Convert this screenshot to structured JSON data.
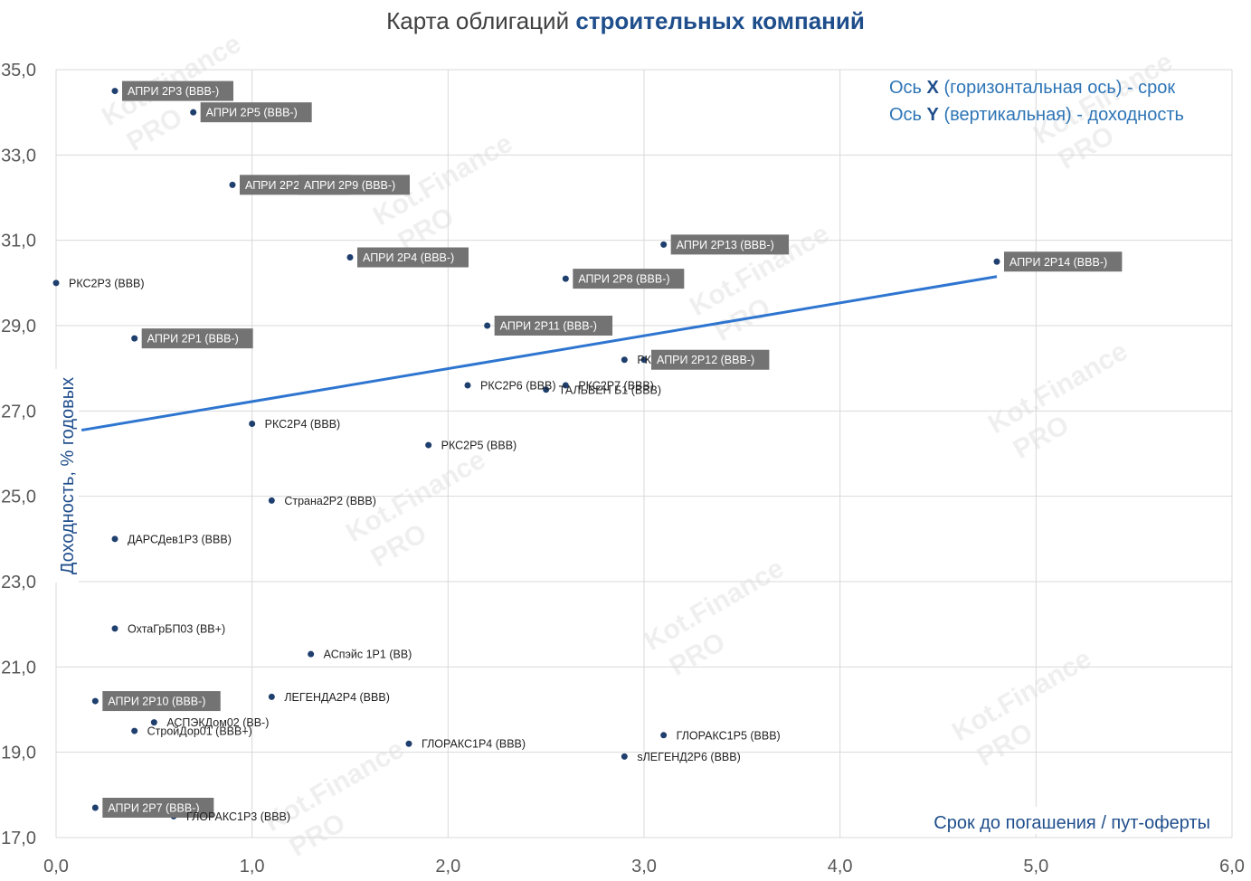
{
  "title_part1": "Карта облигаций ",
  "title_part2": "строительных компаний",
  "note_x_prefix": "Ось ",
  "note_x_letter": "X",
  "note_x_rest": " (горизонтальная ось) - срок",
  "note_y_prefix": "Ось ",
  "note_y_letter": "Y",
  "note_y_rest": " (вертикальная) - доходность",
  "watermark": "Kot.Finance",
  "watermark_badge": "PRO",
  "colors": {
    "points": "#1f3f6e",
    "trend": "#2e75d0",
    "label_box": "#737373",
    "title_accent": "#1f4e8c"
  },
  "chart_data": {
    "type": "scatter",
    "title": "Карта облигаций строительных компаний",
    "xlabel": "Срок до погашения / пут-оферты",
    "ylabel": "Доходность, % годовых",
    "xlim": [
      0,
      6
    ],
    "ylim": [
      17,
      35
    ],
    "x_ticks": [
      "0,0",
      "1,0",
      "2,0",
      "3,0",
      "4,0",
      "5,0",
      "6,0"
    ],
    "y_ticks": [
      "17,0",
      "19,0",
      "21,0",
      "23,0",
      "25,0",
      "27,0",
      "29,0",
      "31,0",
      "33,0",
      "35,0"
    ],
    "grid": true,
    "trendline": {
      "x": [
        0.13,
        4.8
      ],
      "y": [
        26.55,
        30.15
      ]
    },
    "points": [
      {
        "label": "АПРИ 2Р3 (BBB-)",
        "x": 0.3,
        "y": 34.5,
        "boxed": true
      },
      {
        "label": "АПРИ 2Р5 (BBB-)",
        "x": 0.7,
        "y": 34.0,
        "boxed": true
      },
      {
        "label": "АПРИ 2Р2 (BBB-)",
        "x": 0.9,
        "y": 32.3,
        "boxed": true
      },
      {
        "label": "АПРИ 2Р9 (BBB-)",
        "x": 1.2,
        "y": 32.3,
        "boxed": true
      },
      {
        "label": "АПРИ 2Р4 (BBB-)",
        "x": 1.5,
        "y": 30.6,
        "boxed": true
      },
      {
        "label": "АПРИ 2Р13 (BBB-)",
        "x": 3.1,
        "y": 30.9,
        "boxed": true
      },
      {
        "label": "АПРИ 2Р14 (BBB-)",
        "x": 4.8,
        "y": 30.5,
        "boxed": true
      },
      {
        "label": "РКС2Р3 (BBB)",
        "x": 0.0,
        "y": 30.0,
        "boxed": false
      },
      {
        "label": "АПРИ 2Р8 (BBB-)",
        "x": 2.6,
        "y": 30.1,
        "boxed": true
      },
      {
        "label": "АПРИ 2Р1 (BBB-)",
        "x": 0.4,
        "y": 28.7,
        "boxed": true
      },
      {
        "label": "АПРИ 2Р11 (BBB-)",
        "x": 2.2,
        "y": 29.0,
        "boxed": true
      },
      {
        "label": "РКС2Р8 (BBB)",
        "x": 2.9,
        "y": 28.2,
        "boxed": false
      },
      {
        "label": "АПРИ 2Р12 (BBB-)",
        "x": 3.0,
        "y": 28.2,
        "boxed": true
      },
      {
        "label": "РКС2Р6 (BBB)",
        "x": 2.1,
        "y": 27.6,
        "boxed": false
      },
      {
        "label": "РКС2Р7 (BBB)",
        "x": 2.6,
        "y": 27.6,
        "boxed": false
      },
      {
        "label": "ТАЛЬВЕН Б1 (BBB)",
        "x": 2.5,
        "y": 27.5,
        "boxed": false
      },
      {
        "label": "РКС2Р4 (BBB)",
        "x": 1.0,
        "y": 26.7,
        "boxed": false
      },
      {
        "label": "РКС2Р5 (BBB)",
        "x": 1.9,
        "y": 26.2,
        "boxed": false
      },
      {
        "label": "Страна2Р2 (BBB)",
        "x": 1.1,
        "y": 24.9,
        "boxed": false
      },
      {
        "label": "ДАРСДев1Р3 (BBB)",
        "x": 0.3,
        "y": 24.0,
        "boxed": false
      },
      {
        "label": "ОхтаГрБП03 (BB+)",
        "x": 0.3,
        "y": 21.9,
        "boxed": false
      },
      {
        "label": "АСпэйс 1Р1 (BB)",
        "x": 1.3,
        "y": 21.3,
        "boxed": false
      },
      {
        "label": "АПРИ 2Р10 (BBB-)",
        "x": 0.2,
        "y": 20.2,
        "boxed": true
      },
      {
        "label": "ЛЕГЕНДА2Р4 (BBB)",
        "x": 1.1,
        "y": 20.3,
        "boxed": false
      },
      {
        "label": "АСПЭКДом02 (BB-)",
        "x": 0.5,
        "y": 19.7,
        "boxed": false
      },
      {
        "label": "СтройДор01 (BBB+)",
        "x": 0.4,
        "y": 19.5,
        "boxed": false
      },
      {
        "label": "ГЛОРАКС1Р5 (BBB)",
        "x": 3.1,
        "y": 19.4,
        "boxed": false
      },
      {
        "label": "ГЛОРАКС1Р4 (BBB)",
        "x": 1.8,
        "y": 19.2,
        "boxed": false
      },
      {
        "label": "sЛЕГЕНД2Р6 (BBB)",
        "x": 2.9,
        "y": 18.9,
        "boxed": false
      },
      {
        "label": "АПРИ 2Р7 (BBB-)",
        "x": 0.2,
        "y": 17.7,
        "boxed": true
      },
      {
        "label": "ГЛОРАКС1Р3 (BBB)",
        "x": 0.6,
        "y": 17.5,
        "boxed": false
      }
    ]
  }
}
